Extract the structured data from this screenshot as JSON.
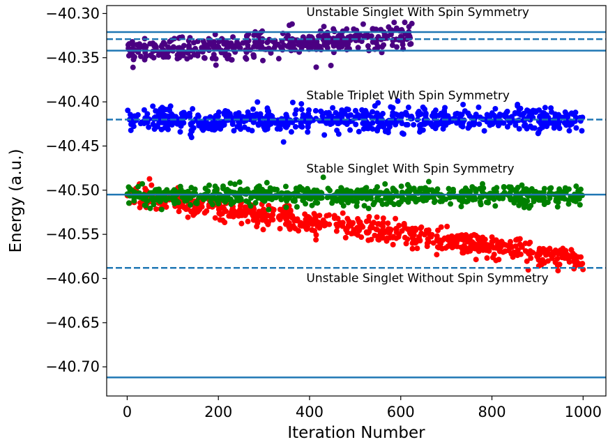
{
  "chart_data": {
    "type": "scatter",
    "title": "",
    "xlabel": "Iteration Number",
    "ylabel": "Energy (a.u.)",
    "xlim": [
      -45,
      1050
    ],
    "ylim": [
      -40.733,
      -40.291
    ],
    "x_ticks": [
      0,
      200,
      400,
      600,
      800,
      1000
    ],
    "y_ticks": [
      -40.3,
      -40.35,
      -40.4,
      -40.45,
      -40.5,
      -40.55,
      -40.6,
      -40.65,
      -40.7
    ],
    "x_tick_labels": [
      "0",
      "200",
      "400",
      "600",
      "800",
      "1000"
    ],
    "y_tick_labels": [
      "−40.30",
      "−40.35",
      "−40.40",
      "−40.45",
      "−40.50",
      "−40.55",
      "−40.60",
      "−40.65",
      "−40.70"
    ],
    "grid": false,
    "series": [
      {
        "color": "#4b0082",
        "x_range": [
          0,
          625
        ],
        "y_start": -40.342,
        "y_end": -40.326,
        "spread": 0.007,
        "n": 420
      },
      {
        "color": "#0000ff",
        "x_range": [
          0,
          1000
        ],
        "y_start": -40.421,
        "y_end": -40.419,
        "spread": 0.0065,
        "n": 700
      },
      {
        "color": "#ff0000",
        "x_range": [
          0,
          1000
        ],
        "y_start": -40.506,
        "y_end": -40.578,
        "spread": 0.0065,
        "n": 700
      },
      {
        "color": "#008000",
        "x_range": [
          0,
          1000
        ],
        "y_start": -40.506,
        "y_end": -40.506,
        "spread": 0.0055,
        "n": 700
      }
    ],
    "reference_lines": [
      {
        "y": -40.321,
        "style": "solid",
        "color": "#1f77b4"
      },
      {
        "y": -40.329,
        "style": "dashed",
        "color": "#1f77b4"
      },
      {
        "y": -40.342,
        "style": "solid",
        "color": "#1f77b4"
      },
      {
        "y": -40.42,
        "style": "dashed",
        "color": "#1f77b4"
      },
      {
        "y": -40.505,
        "style": "solid",
        "color": "#1f77b4"
      },
      {
        "y": -40.588,
        "style": "dashed",
        "color": "#1f77b4"
      },
      {
        "y": -40.712,
        "style": "solid",
        "color": "#1f77b4"
      }
    ],
    "annotations": [
      {
        "text": "Unstable Singlet With Spin Symmetry",
        "x": 393,
        "y": -40.303
      },
      {
        "text": "Stable Triplet With Spin Symmetry",
        "x": 393,
        "y": -40.397
      },
      {
        "text": "Stable Singlet With Spin Symmetry",
        "x": 393,
        "y": -40.48
      },
      {
        "text": "Unstable Singlet Without Spin Symmetry",
        "x": 393,
        "y": -40.604
      }
    ]
  }
}
